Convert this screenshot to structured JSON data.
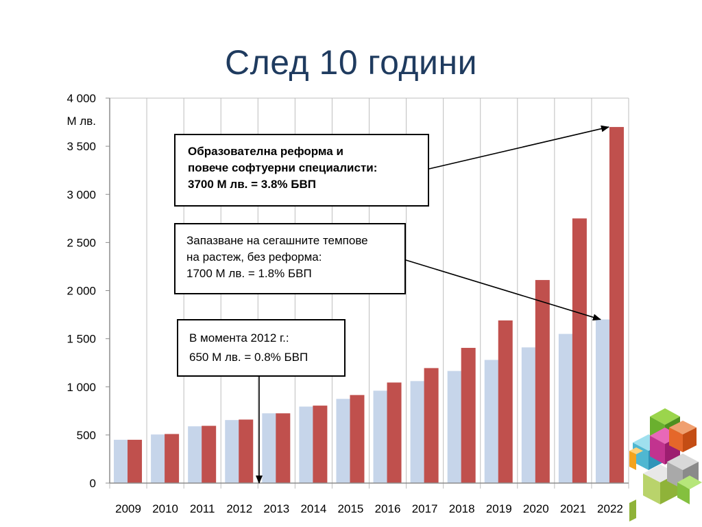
{
  "slide": {
    "title": "След 10 години"
  },
  "chart_data": {
    "type": "bar",
    "title": "",
    "ylabel": "М лв.",
    "xlabel": "",
    "ylim": [
      0,
      4000
    ],
    "yticks": [
      0,
      500,
      1000,
      1500,
      2000,
      2500,
      3000,
      3500,
      4000
    ],
    "ytick_labels": [
      "0",
      "500",
      "1 000",
      "1 500",
      "2 000",
      "2 500",
      "3 000",
      "3 500",
      "4 000"
    ],
    "categories": [
      "2009",
      "2010",
      "2011",
      "2012",
      "2013",
      "2014",
      "2015",
      "2016",
      "2017",
      "2018",
      "2019",
      "2020",
      "2021",
      "2022"
    ],
    "series": [
      {
        "color": "#c6d5ea",
        "values": [
          450,
          505,
          590,
          655,
          725,
          795,
          875,
          960,
          1060,
          1165,
          1280,
          1410,
          1550,
          1700
        ]
      },
      {
        "color": "#c0504d",
        "values": [
          450,
          510,
          595,
          660,
          725,
          805,
          915,
          1045,
          1195,
          1405,
          1690,
          2110,
          2750,
          3700
        ]
      }
    ],
    "grid": "vertical",
    "annotations": [
      {
        "lines": [
          "Образователна реформа и",
          "повече софтуерни специалисти:",
          "3700 М лв. = 3.8% БВП"
        ]
      },
      {
        "lines": [
          "Запазване на сегашните темпове",
          "на растеж, без реформа:",
          "1700 М лв. = 1.8% БВП"
        ]
      },
      {
        "lines": [
          "В момента 2012 г.:",
          "650 М лв. = 0.8% БВП"
        ]
      }
    ]
  },
  "decor": {
    "icon": "colored-cubes-icon"
  }
}
